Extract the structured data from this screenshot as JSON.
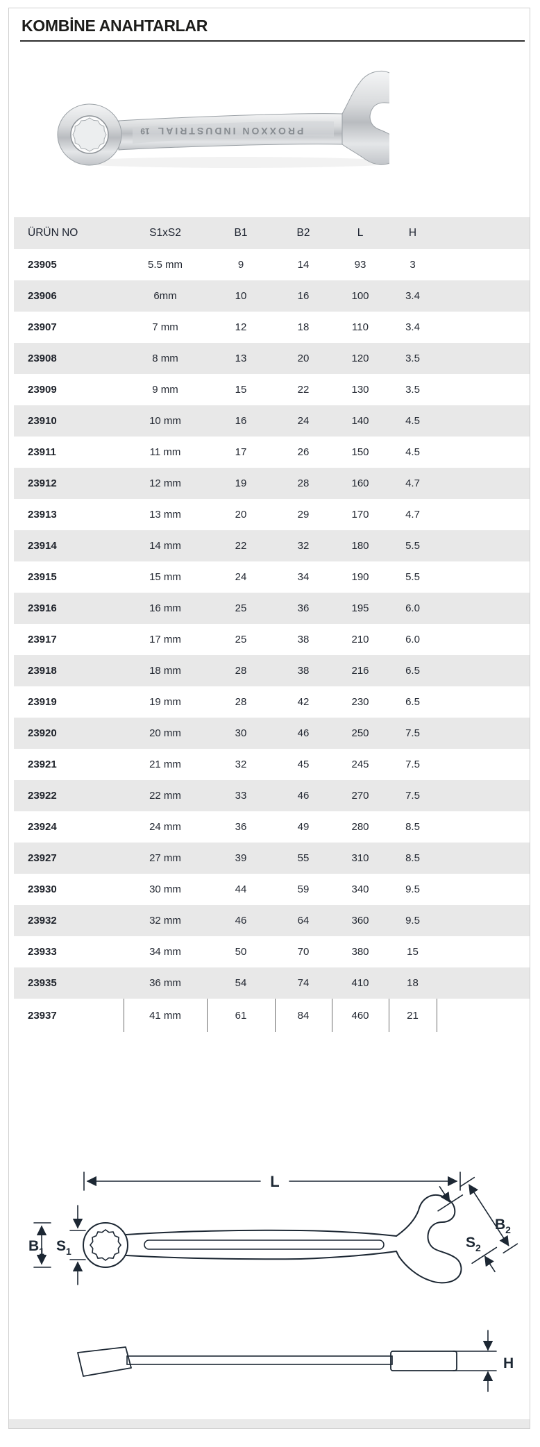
{
  "title": "KOMBİNE ANAHTARLAR",
  "product_photo": {
    "description": "chrome combination wrench, ring end left, open jaw right",
    "engraving": "PROXXON INDUSTRIAL",
    "size_mark": "19"
  },
  "table": {
    "headers": [
      "ÜRÜN NO",
      "S1xS2",
      "B1",
      "B2",
      "L",
      "H"
    ],
    "rows": [
      [
        "23905",
        "5.5 mm",
        "9",
        "14",
        "93",
        "3"
      ],
      [
        "23906",
        "6mm",
        "10",
        "16",
        "100",
        "3.4"
      ],
      [
        "23907",
        "7 mm",
        "12",
        "18",
        "110",
        "3.4"
      ],
      [
        "23908",
        "8 mm",
        "13",
        "20",
        "120",
        "3.5"
      ],
      [
        "23909",
        "9 mm",
        "15",
        "22",
        "130",
        "3.5"
      ],
      [
        "23910",
        "10 mm",
        "16",
        "24",
        "140",
        "4.5"
      ],
      [
        "23911",
        "11 mm",
        "17",
        "26",
        "150",
        "4.5"
      ],
      [
        "23912",
        "12 mm",
        "19",
        "28",
        "160",
        "4.7"
      ],
      [
        "23913",
        "13 mm",
        "20",
        "29",
        "170",
        "4.7"
      ],
      [
        "23914",
        "14 mm",
        "22",
        "32",
        "180",
        "5.5"
      ],
      [
        "23915",
        "15 mm",
        "24",
        "34",
        "190",
        "5.5"
      ],
      [
        "23916",
        "16 mm",
        "25",
        "36",
        "195",
        "6.0"
      ],
      [
        "23917",
        "17 mm",
        "25",
        "38",
        "210",
        "6.0"
      ],
      [
        "23918",
        "18 mm",
        "28",
        "38",
        "216",
        "6.5"
      ],
      [
        "23919",
        "19 mm",
        "28",
        "42",
        "230",
        "6.5"
      ],
      [
        "23920",
        "20 mm",
        "30",
        "46",
        "250",
        "7.5"
      ],
      [
        "23921",
        "21 mm",
        "32",
        "45",
        "245",
        "7.5"
      ],
      [
        "23922",
        "22 mm",
        "33",
        "46",
        "270",
        "7.5"
      ],
      [
        "23924",
        "24 mm",
        "36",
        "49",
        "280",
        "8.5"
      ],
      [
        "23927",
        "27 mm",
        "39",
        "55",
        "310",
        "8.5"
      ],
      [
        "23930",
        "30 mm",
        "44",
        "59",
        "340",
        "9.5"
      ],
      [
        "23932",
        "32 mm",
        "46",
        "64",
        "360",
        "9.5"
      ],
      [
        "23933",
        "34 mm",
        "50",
        "70",
        "380",
        "15"
      ],
      [
        "23935",
        "36 mm",
        "54",
        "74",
        "410",
        "18"
      ],
      [
        "23937",
        "41 mm",
        "61",
        "84",
        "460",
        "21"
      ]
    ]
  },
  "diagram": {
    "l": "L",
    "b1_base": "B",
    "b1_sub": "1",
    "s1_base": "S",
    "s1_sub": "1",
    "s2_base": "S",
    "s2_sub": "2",
    "b2_base": "B",
    "b2_sub": "2",
    "h": "H"
  },
  "colors": {
    "row_stripe": "#e8e8e8",
    "table_text": "#242933",
    "title_text": "#1d1d1b",
    "title_rule": "#2d2d2d",
    "diagram_stroke": "#1c2733",
    "page_border": "#cfcfcf"
  }
}
